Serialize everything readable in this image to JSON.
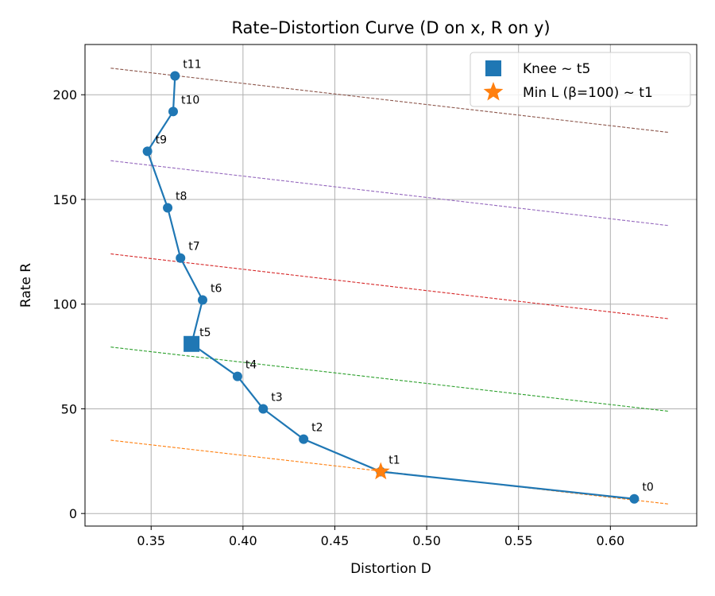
{
  "chart_data": {
    "type": "line",
    "title": "Rate–Distortion Curve (D on x, R on y)",
    "xlabel": "Distortion D",
    "ylabel": "Rate R",
    "xlim": [
      0.314,
      0.647
    ],
    "ylim": [
      -6,
      224
    ],
    "xticks": [
      0.35,
      0.4,
      0.45,
      0.5,
      0.55,
      0.6
    ],
    "xtick_labels": [
      "0.35",
      "0.40",
      "0.45",
      "0.50",
      "0.55",
      "0.60"
    ],
    "yticks": [
      0,
      50,
      100,
      150,
      200
    ],
    "ytick_labels": [
      "0",
      "50",
      "100",
      "150",
      "200"
    ],
    "grid": true,
    "legend_position": "top-right",
    "series": [
      {
        "labels": [
          "t0",
          "t1",
          "t2",
          "t3",
          "t4",
          "t5",
          "t6",
          "t7",
          "t8",
          "t9",
          "t10",
          "t11"
        ],
        "x": [
          0.613,
          0.475,
          0.433,
          0.411,
          0.397,
          0.372,
          0.378,
          0.366,
          0.359,
          0.348,
          0.362,
          0.363
        ],
        "y": [
          7,
          20,
          35.5,
          50,
          65.5,
          81,
          102,
          122,
          146,
          173,
          192,
          209
        ],
        "color": "#1f77b4"
      }
    ],
    "markers": [
      {
        "name": "Knee ~ t5",
        "shape": "square",
        "x": 0.372,
        "y": 81,
        "color": "#1f77b4"
      },
      {
        "name": "Min L (β=100) ~ t1",
        "shape": "star",
        "x": 0.475,
        "y": 20,
        "color": "#ff7f0e"
      }
    ],
    "iso_lines": [
      {
        "x": [
          0.328,
          0.632
        ],
        "y": [
          35,
          4.5
        ],
        "color": "#ff7f0e"
      },
      {
        "x": [
          0.328,
          0.632
        ],
        "y": [
          79.5,
          48.8
        ],
        "color": "#2ca02c"
      },
      {
        "x": [
          0.328,
          0.632
        ],
        "y": [
          124,
          93
        ],
        "color": "#d62728"
      },
      {
        "x": [
          0.328,
          0.632
        ],
        "y": [
          168.5,
          137.5
        ],
        "color": "#9467bd"
      },
      {
        "x": [
          0.328,
          0.632
        ],
        "y": [
          212.7,
          182
        ],
        "color": "#8c564b"
      }
    ]
  }
}
